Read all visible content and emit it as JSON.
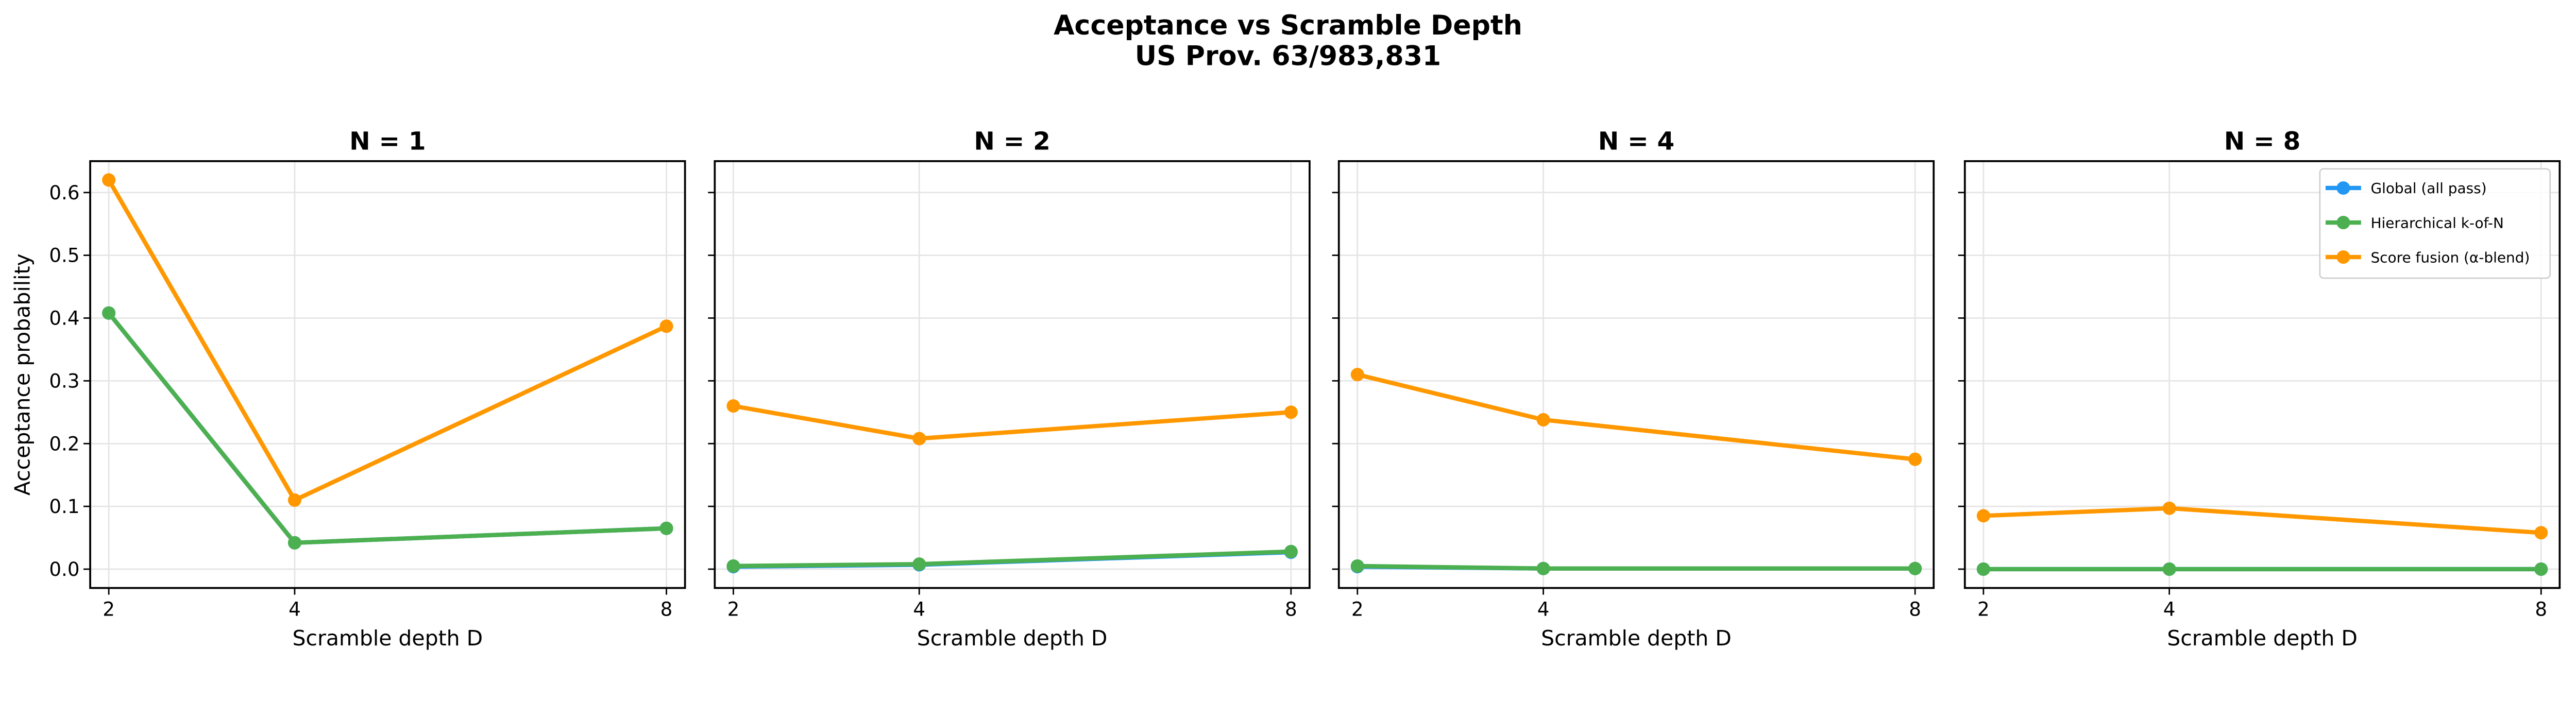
{
  "chart_data": {
    "type": "line",
    "title": "Acceptance vs Scramble Depth",
    "subtitle": "US Prov. 63/983,831",
    "ylabel": "Acceptance probability",
    "xlabel": "Scramble depth D",
    "x": [
      2,
      4,
      8
    ],
    "xticks": [
      "2",
      "4",
      "8"
    ],
    "yticks": [
      "0.0",
      "0.1",
      "0.2",
      "0.3",
      "0.4",
      "0.5",
      "0.6"
    ],
    "ylim": [
      -0.03,
      0.65
    ],
    "xlim": [
      1.8,
      8.2
    ],
    "grid": true,
    "shared_y": true,
    "legend_placement": "upper-right (last panel)",
    "legend": [
      "Global (all pass)",
      "Hierarchical k-of-N",
      "Score fusion (α-blend)"
    ],
    "colors": {
      "global": "#2196F3",
      "hierarchical": "#4CAF50",
      "fusion": "#FF9800"
    },
    "panels": [
      {
        "title": "N = 1",
        "series": [
          {
            "name": "Global (all pass)",
            "values": [
              0.408,
              0.042,
              0.065
            ]
          },
          {
            "name": "Hierarchical k-of-N",
            "values": [
              0.408,
              0.042,
              0.065
            ]
          },
          {
            "name": "Score fusion (α-blend)",
            "values": [
              0.62,
              0.11,
              0.387
            ]
          }
        ]
      },
      {
        "title": "N = 2",
        "series": [
          {
            "name": "Global (all pass)",
            "values": [
              0.004,
              0.007,
              0.027
            ]
          },
          {
            "name": "Hierarchical k-of-N",
            "values": [
              0.005,
              0.008,
              0.028
            ]
          },
          {
            "name": "Score fusion (α-blend)",
            "values": [
              0.26,
              0.208,
              0.25
            ]
          }
        ]
      },
      {
        "title": "N = 4",
        "series": [
          {
            "name": "Global (all pass)",
            "values": [
              0.004,
              0.001,
              0.001
            ]
          },
          {
            "name": "Hierarchical k-of-N",
            "values": [
              0.005,
              0.001,
              0.001
            ]
          },
          {
            "name": "Score fusion (α-blend)",
            "values": [
              0.31,
              0.238,
              0.175
            ]
          }
        ]
      },
      {
        "title": "N = 8",
        "series": [
          {
            "name": "Global (all pass)",
            "values": [
              0.0,
              0.0,
              0.0
            ]
          },
          {
            "name": "Hierarchical k-of-N",
            "values": [
              0.0,
              0.0,
              0.0
            ]
          },
          {
            "name": "Score fusion (α-blend)",
            "values": [
              0.085,
              0.097,
              0.058
            ]
          }
        ]
      }
    ]
  }
}
